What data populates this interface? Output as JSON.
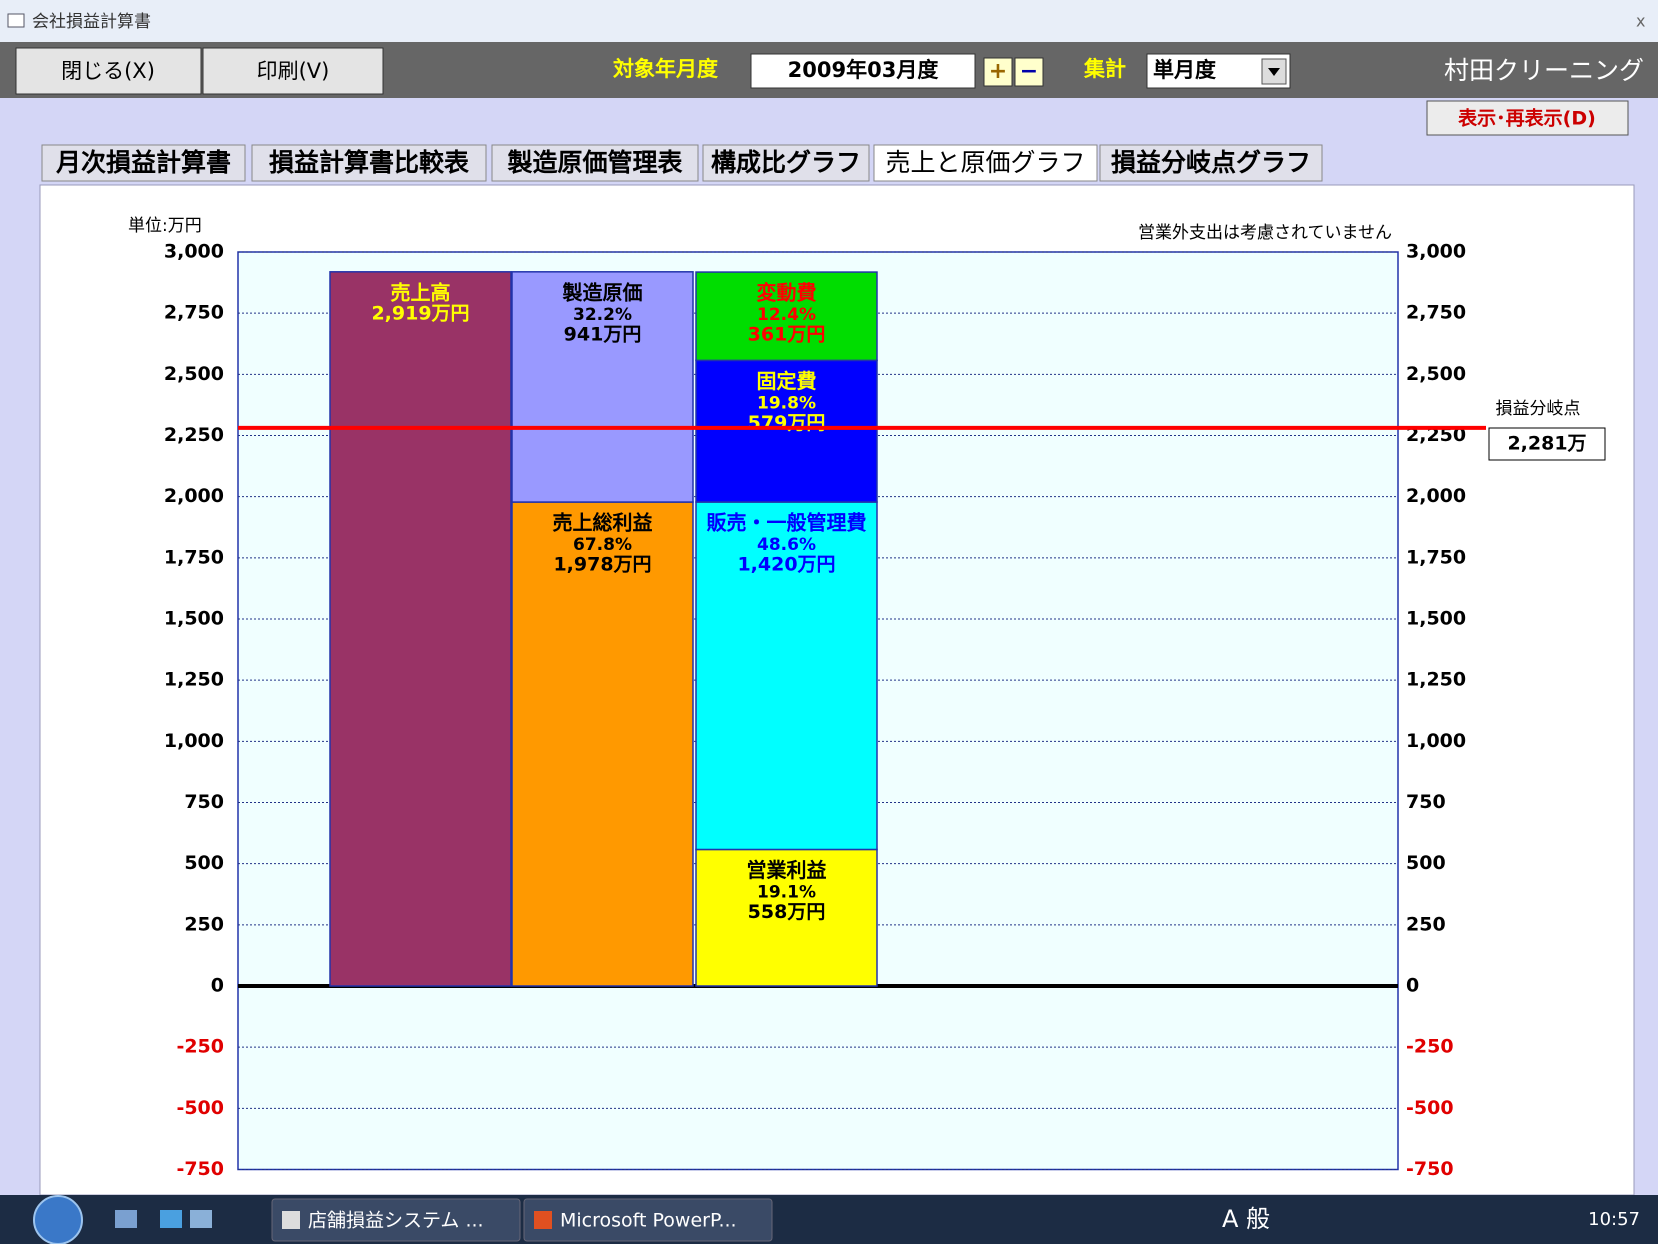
{
  "window": {
    "title": "会社損益計算書",
    "close": "x"
  },
  "toolbar": {
    "close_button": "閉じる(X)",
    "print_button": "印刷(V)",
    "period_label": "対象年月度",
    "period_value": "2009年03月度",
    "plus": "+",
    "minus": "−",
    "aggregate_label": "集計",
    "aggregate_value": "単月度",
    "company": "村田クリーニング",
    "refresh_button": "表示･再表示(D)"
  },
  "tabs": [
    "月次損益計算書",
    "損益計算書比較表",
    "製造原価管理表",
    "構成比グラフ",
    "売上と原価グラフ",
    "損益分岐点グラフ"
  ],
  "active_tab": 4,
  "chart_data": {
    "type": "stacked_bar",
    "unit_label": "単位:万円",
    "note": "営業外支出は考慮されていません",
    "ylim": [
      -750,
      3000
    ],
    "yticks": [
      -750,
      -500,
      -250,
      0,
      250,
      500,
      750,
      {
        "value": 1000,
        "label": "1,000"
      },
      {
        "value": 1250,
        "label": "1,250"
      },
      {
        "value": 1500,
        "label": "1,500"
      },
      {
        "value": 1750,
        "label": "1,750"
      },
      {
        "value": 2000,
        "label": "2,000"
      },
      {
        "value": 2250,
        "label": "2,250"
      },
      {
        "value": 2500,
        "label": "2,500"
      },
      {
        "value": 2750,
        "label": "2,750"
      },
      {
        "value": 3000,
        "label": "3,000"
      }
    ],
    "negative_tick_color": "#e00000",
    "grid": true,
    "bars": [
      {
        "segments": [
          {
            "name": "売上高",
            "value": 2919,
            "value_label": "2,919万円",
            "color": "#993366",
            "text_color": "#ffff00"
          }
        ]
      },
      {
        "segments": [
          {
            "name": "売上総利益",
            "percent": 67.8,
            "percent_label": "67.8%",
            "value": 1978,
            "value_label": "1,978万円",
            "color": "#ff9900",
            "text_color": "#000000"
          },
          {
            "name": "製造原価",
            "percent": 32.2,
            "percent_label": "32.2%",
            "value": 941,
            "value_label": "941万円",
            "color": "#9999ff",
            "text_color": "#000000"
          }
        ]
      },
      {
        "segments": [
          {
            "name": "営業利益",
            "percent": 19.1,
            "percent_label": "19.1%",
            "value": 558,
            "value_label": "558万円",
            "color": "#ffff00",
            "text_color": "#000000"
          },
          {
            "name": "販売・一般管理費",
            "percent": 48.6,
            "percent_label": "48.6%",
            "value": 1420,
            "value_label": "1,420万円",
            "color": "#00ffff",
            "text_color": "#0000ff"
          },
          {
            "name": "固定費",
            "percent": 19.8,
            "percent_label": "19.8%",
            "value": 579,
            "value_label": "579万円",
            "color": "#0000ff",
            "text_color": "#ffff00"
          },
          {
            "name": "変動費",
            "percent": 12.4,
            "percent_label": "12.4%",
            "value": 361,
            "value_label": "361万円",
            "color": "#00dd00",
            "text_color": "#ff0000"
          }
        ]
      }
    ],
    "break_even": {
      "label": "損益分岐点",
      "value": 2281,
      "value_label": "2,281万",
      "color": "#ff0000"
    }
  },
  "taskbar": {
    "items": [
      "店舗損益システム ...",
      "Microsoft PowerP..."
    ],
    "tray_text": "A 般",
    "clock": "10:57"
  }
}
